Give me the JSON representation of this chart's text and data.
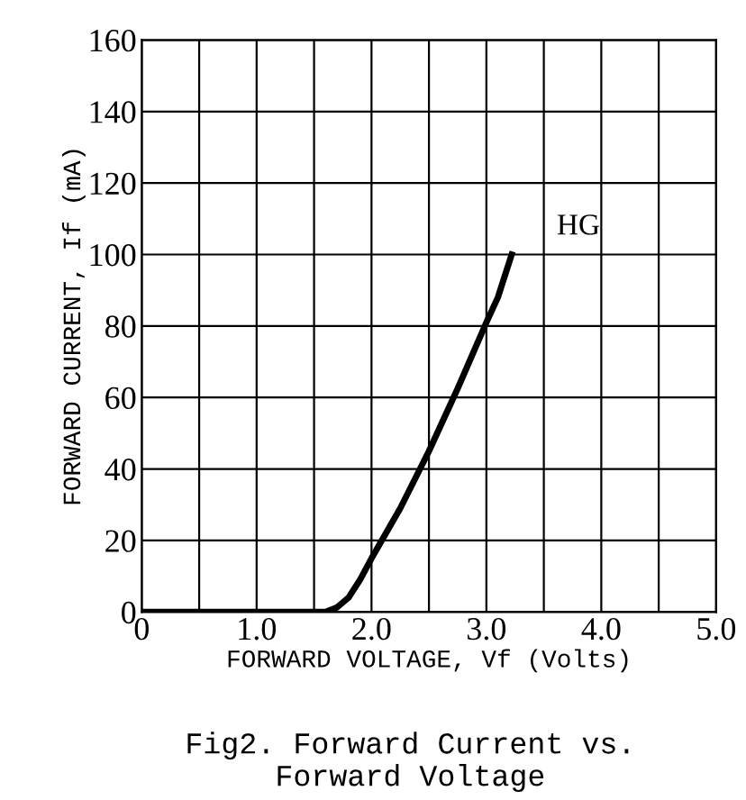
{
  "chart_data": {
    "type": "line",
    "xlabel": "FORWARD VOLTAGE, Vf (Volts)",
    "ylabel": "FORWARD CURRENT, If (mA)",
    "annotations": [
      "Fig2. Forward Current vs.\nForward Voltage"
    ],
    "x": [
      0,
      0.5,
      1.0,
      1.5,
      1.6,
      1.7,
      1.8,
      1.9,
      2.0,
      2.25,
      2.5,
      2.75,
      3.0,
      3.1,
      3.22
    ],
    "series": [
      {
        "name": "HG",
        "color": "#000000",
        "values": [
          0,
          0,
          0,
          0,
          0,
          1.3,
          4,
          9,
          15,
          29,
          45,
          62.5,
          81,
          88,
          100
        ]
      }
    ],
    "xlim": [
      0,
      5
    ],
    "ylim": [
      0,
      160
    ],
    "xticks": [
      0,
      {
        "value": 0.5,
        "label": null
      },
      {
        "value": 1.0,
        "label": "1.0"
      },
      {
        "value": 1.5,
        "label": null
      },
      {
        "value": 2.0,
        "label": "2.0"
      },
      {
        "value": 2.5,
        "label": null
      },
      {
        "value": 3.0,
        "label": "3.0"
      },
      {
        "value": 3.5,
        "label": null
      },
      {
        "value": 4.0,
        "label": "4.0"
      },
      {
        "value": 4.5,
        "label": null
      },
      {
        "value": 5.0,
        "label": "5.0"
      }
    ],
    "yticks": [
      0,
      20,
      40,
      60,
      80,
      100,
      120,
      140,
      160
    ],
    "grid": true,
    "legend": false,
    "marker": "none",
    "line_style": "solid"
  }
}
